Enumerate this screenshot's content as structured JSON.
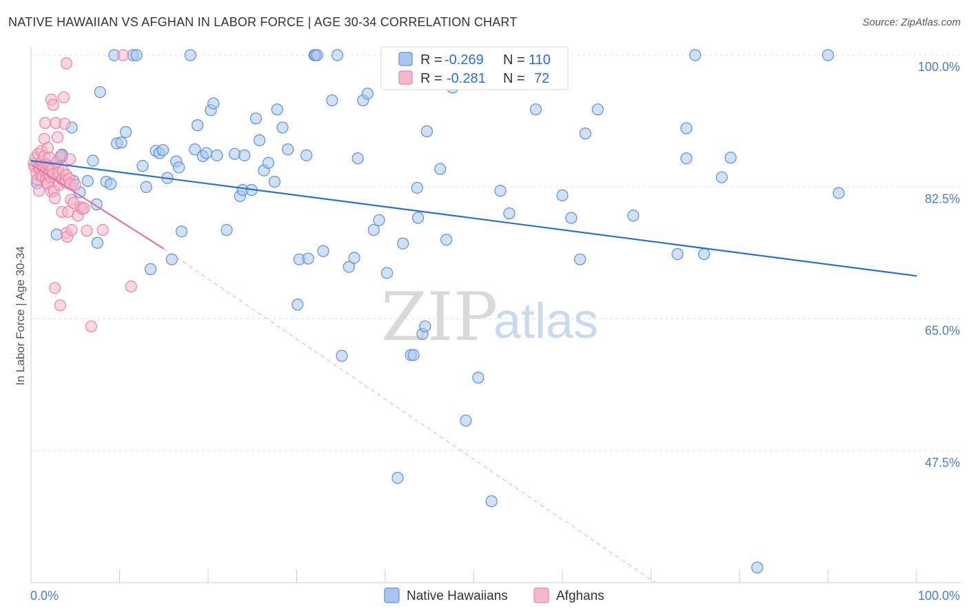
{
  "title": "NATIVE HAWAIIAN VS AFGHAN IN LABOR FORCE | AGE 30-34 CORRELATION CHART",
  "source": "Source: ZipAtlas.com",
  "watermark": {
    "zip": "ZIP",
    "atlas": "atlas"
  },
  "colors": {
    "blue_fill": "#a9c6ee",
    "blue_stroke": "#5b8fd6",
    "blue_line": "#2a6fcf",
    "pink_fill": "#f6b8cc",
    "pink_stroke": "#e982a6",
    "pink_line": "#e8729b",
    "grid": "#e3e3e3",
    "axis_label": "#4a7cc7"
  },
  "legend": {
    "rows": [
      {
        "r_label": "R =",
        "r_value": "-0.269",
        "n_label": "N =",
        "n_value": "110"
      },
      {
        "r_label": "R =",
        "r_value": "-0.281",
        "n_label": "N =",
        "n_value": "72"
      }
    ]
  },
  "chart_data": {
    "type": "scatter",
    "ylabel": "In Labor Force | Age 30-34",
    "xlim": [
      0,
      100
    ],
    "ylim": [
      30,
      103
    ],
    "x_tick_labels": [
      "0.0%",
      "100.0%"
    ],
    "y_ticks": [
      47.5,
      65.0,
      82.5,
      100.0
    ],
    "y_tick_labels": [
      "47.5%",
      "65.0%",
      "82.5%",
      "100.0%"
    ],
    "series": [
      {
        "name": "Native Hawaiians",
        "color_key": "blue",
        "r": -0.269,
        "n": 110,
        "trend": {
          "x0": 0,
          "y0": 86.0,
          "x1": 100,
          "y1": 70.7
        },
        "points": [
          [
            0.7,
            83.0
          ],
          [
            1.5,
            85.5
          ],
          [
            2.2,
            83.8
          ],
          [
            3.0,
            84.2
          ],
          [
            3.5,
            86.5
          ],
          [
            4.8,
            83.3
          ],
          [
            2.9,
            76.2
          ],
          [
            3.3,
            86.4
          ],
          [
            3.5,
            86.8
          ],
          [
            4.6,
            90.4
          ],
          [
            5.5,
            81.8
          ],
          [
            6.4,
            83.3
          ],
          [
            7.0,
            86.0
          ],
          [
            7.4,
            80.2
          ],
          [
            7.5,
            75.1
          ],
          [
            7.8,
            95.1
          ],
          [
            8.5,
            83.2
          ],
          [
            9.0,
            82.9
          ],
          [
            9.4,
            100.0
          ],
          [
            9.7,
            88.3
          ],
          [
            10.2,
            88.4
          ],
          [
            10.7,
            89.8
          ],
          [
            11.5,
            100.0
          ],
          [
            11.9,
            100.0
          ],
          [
            12.6,
            85.3
          ],
          [
            13.0,
            82.5
          ],
          [
            13.5,
            71.6
          ],
          [
            14.1,
            87.3
          ],
          [
            14.5,
            87.0
          ],
          [
            14.9,
            87.4
          ],
          [
            15.4,
            83.7
          ],
          [
            15.9,
            72.9
          ],
          [
            16.4,
            85.9
          ],
          [
            16.7,
            85.1
          ],
          [
            17.0,
            76.6
          ],
          [
            18.0,
            100.0
          ],
          [
            18.5,
            87.5
          ],
          [
            18.8,
            90.7
          ],
          [
            19.4,
            86.6
          ],
          [
            19.8,
            87.0
          ],
          [
            20.3,
            92.7
          ],
          [
            20.6,
            93.6
          ],
          [
            21.0,
            86.7
          ],
          [
            22.1,
            76.8
          ],
          [
            23.0,
            86.9
          ],
          [
            23.6,
            81.3
          ],
          [
            23.9,
            82.1
          ],
          [
            24.1,
            86.7
          ],
          [
            24.9,
            82.1
          ],
          [
            25.4,
            91.6
          ],
          [
            25.8,
            88.7
          ],
          [
            26.3,
            84.7
          ],
          [
            26.8,
            85.7
          ],
          [
            27.5,
            83.2
          ],
          [
            27.8,
            92.8
          ],
          [
            28.4,
            90.4
          ],
          [
            29.0,
            87.5
          ],
          [
            30.1,
            66.9
          ],
          [
            30.3,
            72.9
          ],
          [
            31.1,
            86.7
          ],
          [
            31.3,
            73.0
          ],
          [
            32.0,
            100.0
          ],
          [
            32.1,
            100.0
          ],
          [
            32.3,
            100.0
          ],
          [
            33.0,
            74.0
          ],
          [
            34.0,
            94.0
          ],
          [
            34.6,
            100.0
          ],
          [
            35.1,
            60.1
          ],
          [
            35.9,
            71.9
          ],
          [
            36.5,
            73.1
          ],
          [
            36.9,
            86.3
          ],
          [
            37.5,
            94.0
          ],
          [
            38.0,
            94.9
          ],
          [
            38.7,
            76.8
          ],
          [
            39.3,
            78.1
          ],
          [
            40.2,
            71.1
          ],
          [
            41.4,
            43.9
          ],
          [
            42.0,
            75.0
          ],
          [
            42.9,
            60.2
          ],
          [
            43.2,
            60.2
          ],
          [
            43.6,
            82.4
          ],
          [
            43.7,
            78.4
          ],
          [
            44.2,
            63.0
          ],
          [
            44.5,
            64.0
          ],
          [
            44.7,
            89.9
          ],
          [
            46.2,
            84.9
          ],
          [
            46.9,
            75.5
          ],
          [
            47.6,
            95.7
          ],
          [
            49.1,
            51.5
          ],
          [
            50.5,
            57.2
          ],
          [
            52.0,
            40.8
          ],
          [
            53.0,
            82.0
          ],
          [
            54.0,
            79.0
          ],
          [
            57.0,
            92.8
          ],
          [
            60.0,
            81.4
          ],
          [
            61.0,
            78.4
          ],
          [
            62.0,
            72.9
          ],
          [
            62.6,
            89.6
          ],
          [
            64.0,
            92.8
          ],
          [
            68.0,
            78.7
          ],
          [
            73.0,
            73.6
          ],
          [
            74.0,
            86.3
          ],
          [
            74.0,
            90.3
          ],
          [
            75.0,
            100.0
          ],
          [
            76.0,
            73.6
          ],
          [
            78.0,
            83.8
          ],
          [
            79.0,
            86.4
          ],
          [
            82.0,
            32.0
          ],
          [
            91.2,
            81.7
          ],
          [
            90.0,
            100.0
          ]
        ]
      },
      {
        "name": "Afghans",
        "color_key": "pink",
        "r": -0.281,
        "n": 72,
        "trend": {
          "x0": 0,
          "y0": 85.5,
          "x1": 15,
          "y1": 74.3,
          "dash_x1": 70.5,
          "dash_y1": 30.0
        },
        "points": [
          [
            0.3,
            85.6
          ],
          [
            0.4,
            85.2
          ],
          [
            0.5,
            86.4
          ],
          [
            0.6,
            84.3
          ],
          [
            0.7,
            83.5
          ],
          [
            0.8,
            86.9
          ],
          [
            0.9,
            85.0
          ],
          [
            0.9,
            82.0
          ],
          [
            1.0,
            84.8
          ],
          [
            1.1,
            84.0
          ],
          [
            1.2,
            85.9
          ],
          [
            1.2,
            87.3
          ],
          [
            1.3,
            83.9
          ],
          [
            1.4,
            84.9
          ],
          [
            1.5,
            86.6
          ],
          [
            1.5,
            88.9
          ],
          [
            1.6,
            84.5
          ],
          [
            1.6,
            91.0
          ],
          [
            1.7,
            85.5
          ],
          [
            1.7,
            83.5
          ],
          [
            1.8,
            83.0
          ],
          [
            1.9,
            87.7
          ],
          [
            1.9,
            82.9
          ],
          [
            2.0,
            85.3
          ],
          [
            2.0,
            84.3
          ],
          [
            2.1,
            86.4
          ],
          [
            2.2,
            83.8
          ],
          [
            2.2,
            85.2
          ],
          [
            2.3,
            94.1
          ],
          [
            2.3,
            81.9
          ],
          [
            2.4,
            84.9
          ],
          [
            2.5,
            93.4
          ],
          [
            2.5,
            84.2
          ],
          [
            2.6,
            82.0
          ],
          [
            2.7,
            81.0
          ],
          [
            2.7,
            69.1
          ],
          [
            2.8,
            91.0
          ],
          [
            2.9,
            85.8
          ],
          [
            3.0,
            89.1
          ],
          [
            3.1,
            85.1
          ],
          [
            3.1,
            84.4
          ],
          [
            3.2,
            82.8
          ],
          [
            3.3,
            66.8
          ],
          [
            3.4,
            86.7
          ],
          [
            3.5,
            83.5
          ],
          [
            3.5,
            79.2
          ],
          [
            3.6,
            84.7
          ],
          [
            3.7,
            94.4
          ],
          [
            3.8,
            83.4
          ],
          [
            3.8,
            90.9
          ],
          [
            3.9,
            83.1
          ],
          [
            4.0,
            84.1
          ],
          [
            4.0,
            76.4
          ],
          [
            4.1,
            75.9
          ],
          [
            4.2,
            79.2
          ],
          [
            4.3,
            83.6
          ],
          [
            4.4,
            86.2
          ],
          [
            4.4,
            82.9
          ],
          [
            4.5,
            80.8
          ],
          [
            4.6,
            76.8
          ],
          [
            4.8,
            80.4
          ],
          [
            5.0,
            82.8
          ],
          [
            5.3,
            78.7
          ],
          [
            5.6,
            79.8
          ],
          [
            5.8,
            79.6
          ],
          [
            6.0,
            79.7
          ],
          [
            6.3,
            76.7
          ],
          [
            6.8,
            64.0
          ],
          [
            8.1,
            76.8
          ],
          [
            10.4,
            100.0
          ],
          [
            11.3,
            69.3
          ],
          [
            4.0,
            98.9
          ]
        ]
      }
    ]
  },
  "bottom_legend": [
    {
      "label": "Native Hawaiians",
      "color_key": "blue"
    },
    {
      "label": "Afghans",
      "color_key": "pink"
    }
  ]
}
